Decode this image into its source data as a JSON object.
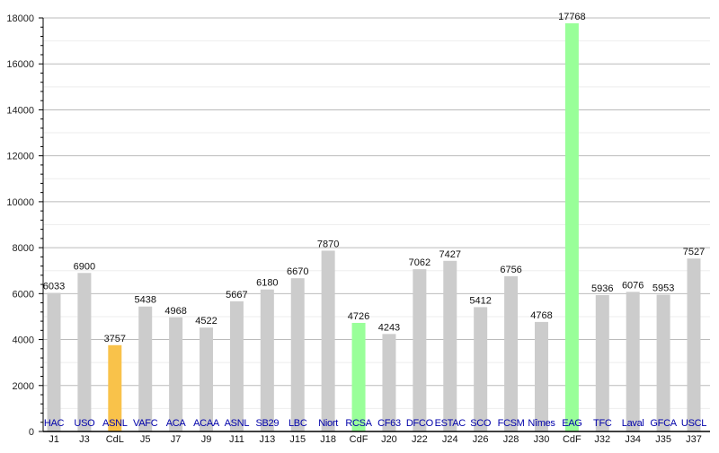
{
  "chart_data": {
    "type": "bar",
    "title": "",
    "xlabel": "",
    "ylabel": "",
    "ylim": [
      0,
      18000
    ],
    "y_ticks": [
      0,
      2000,
      4000,
      6000,
      8000,
      10000,
      12000,
      14000,
      16000,
      18000
    ],
    "grid": true,
    "categories": [
      "J1",
      "J3",
      "CdL",
      "J5",
      "J7",
      "J9",
      "J11",
      "J13",
      "J15",
      "J18",
      "CdF",
      "J20",
      "J22",
      "J24",
      "J26",
      "J28",
      "J30",
      "CdF",
      "J32",
      "J34",
      "J35",
      "J37"
    ],
    "teams": [
      "HAC",
      "USO",
      "ASNL",
      "VAFC",
      "ACA",
      "ACAA",
      "ASNL",
      "SB29",
      "LBC",
      "Niort",
      "RCSA",
      "CF63",
      "DFCO",
      "ESTAC",
      "SCO",
      "FCSM",
      "Nîmes",
      "EAG",
      "TFC",
      "Laval",
      "GFCA",
      "USCL"
    ],
    "values": [
      6033,
      6900,
      3757,
      5438,
      4968,
      4522,
      5667,
      6180,
      6670,
      7870,
      4726,
      4243,
      7062,
      7427,
      5412,
      6756,
      4768,
      17768,
      5936,
      6076,
      5953,
      7527
    ],
    "bar_kinds": [
      "league",
      "league",
      "cdl",
      "league",
      "league",
      "league",
      "league",
      "league",
      "league",
      "league",
      "cdf",
      "league",
      "league",
      "league",
      "league",
      "league",
      "league",
      "cdf",
      "league",
      "league",
      "league",
      "league"
    ],
    "colors": {
      "league": "#cccccc",
      "cdl": "#f9c24a",
      "cdf": "#99ff99",
      "team_label": "#0000aa"
    }
  }
}
